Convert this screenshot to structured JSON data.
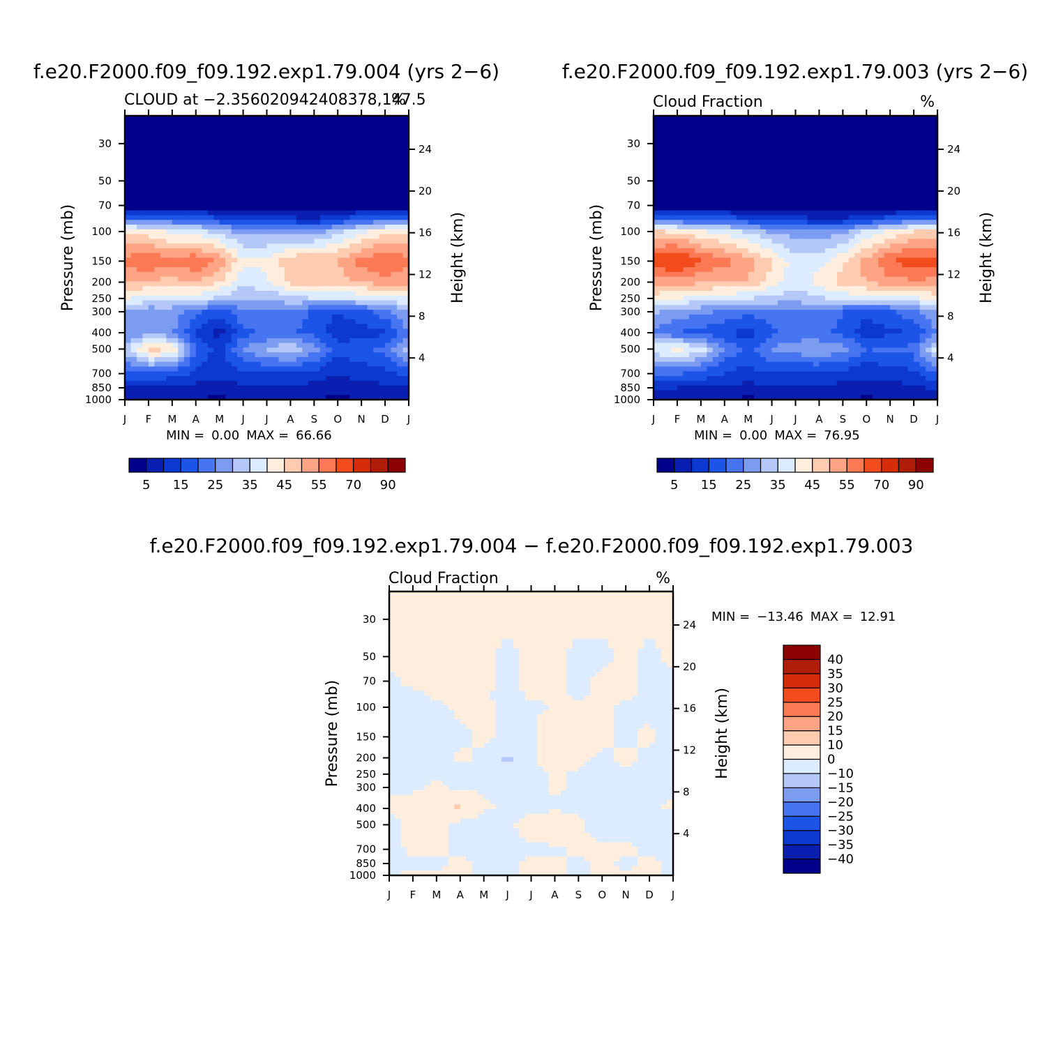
{
  "chart_data": [
    {
      "type": "heatmap",
      "id": "cloud_test",
      "title": "f.e20.F2000.f09_f09.192.exp1.79.004 (yrs 2−6)",
      "subtitle_left": "CLOUD at −2.356020942408378,147.5",
      "units": "%",
      "xlabel": "",
      "ylabel_left": "Pressure (mb)",
      "ylabel_right": "Height (km)",
      "x_ticks": [
        "J",
        "F",
        "M",
        "A",
        "M",
        "J",
        "J",
        "A",
        "S",
        "O",
        "N",
        "D",
        "J"
      ],
      "pressure_ticks": [
        30,
        50,
        70,
        100,
        150,
        200,
        250,
        300,
        400,
        500,
        700,
        850,
        1000
      ],
      "height_ticks": [
        24,
        20,
        16,
        12,
        8,
        4
      ],
      "min_label": "MIN =",
      "min_value": "0.00",
      "max_label": "MAX =",
      "max_value": "66.66",
      "colorbar_labels": [
        "5",
        "15",
        "25",
        "35",
        "45",
        "55",
        "70",
        "90"
      ],
      "colors": [
        "#00008b",
        "#0a1fb0",
        "#0c39d0",
        "#1d54e8",
        "#4774f0",
        "#7c9cf2",
        "#b3c8f7",
        "#dcebfd",
        "#ffeedd",
        "#fdcbb0",
        "#fda485",
        "#fb7a55",
        "#f24b1c",
        "#d52d0a",
        "#b01e0a",
        "#8b0000"
      ],
      "levels": [
        0,
        5,
        10,
        15,
        20,
        25,
        30,
        35,
        40,
        45,
        50,
        55,
        60,
        70,
        80,
        90
      ],
      "months": [
        0,
        1,
        2,
        3,
        4,
        5,
        6,
        7,
        8,
        9,
        10,
        11,
        12
      ],
      "z": [
        [
          0,
          0,
          0,
          0,
          0,
          0,
          0,
          0,
          0,
          0,
          0,
          0,
          0
        ],
        [
          0,
          0,
          0,
          0,
          0,
          0,
          0,
          0,
          0,
          0,
          0,
          0,
          0
        ],
        [
          1,
          1,
          1,
          1,
          1,
          1,
          1,
          1,
          1,
          1,
          1,
          1,
          1
        ],
        [
          23,
          21,
          21,
          20,
          17,
          12,
          13,
          12,
          10,
          15,
          19,
          22,
          23
        ],
        [
          44,
          42,
          39,
          37,
          33,
          28,
          29,
          27,
          27,
          34,
          39,
          43,
          44
        ],
        [
          57,
          60,
          56,
          60,
          54,
          41,
          41,
          49,
          50,
          50,
          57,
          61,
          57
        ],
        [
          51,
          49,
          48,
          50,
          45,
          36,
          39,
          46,
          49,
          48,
          50,
          53,
          51
        ],
        [
          40,
          38,
          37,
          36,
          34,
          30,
          31,
          33,
          35,
          35,
          36,
          37,
          40
        ],
        [
          30,
          26,
          27,
          22,
          17,
          24,
          25,
          24,
          19,
          15,
          18,
          23,
          30
        ],
        [
          25,
          28,
          26,
          14,
          8,
          18,
          21,
          20,
          18,
          12,
          13,
          14,
          25
        ],
        [
          32,
          48,
          44,
          20,
          13,
          26,
          30,
          35,
          27,
          17,
          19,
          22,
          32
        ],
        [
          18,
          20,
          17,
          14,
          12,
          14,
          15,
          14,
          13,
          10,
          12,
          13,
          18
        ],
        [
          10,
          10,
          9,
          8,
          7,
          9,
          10,
          9,
          8,
          7,
          8,
          9,
          10
        ],
        [
          6,
          5,
          6,
          5,
          4,
          5,
          6,
          5,
          5,
          4,
          5,
          5,
          6
        ]
      ],
      "z_pressure": [
        30,
        50,
        70,
        85,
        100,
        150,
        200,
        250,
        300,
        400,
        500,
        700,
        850,
        1000
      ]
    },
    {
      "type": "heatmap",
      "id": "cloud_control",
      "title": "f.e20.F2000.f09_f09.192.exp1.79.003 (yrs 2−6)",
      "subtitle_left": "Cloud Fraction",
      "units": "%",
      "xlabel": "",
      "ylabel_left": "Pressure (mb)",
      "ylabel_right": "Height (km)",
      "x_ticks": [
        "J",
        "F",
        "M",
        "A",
        "M",
        "J",
        "J",
        "A",
        "S",
        "O",
        "N",
        "D",
        "J"
      ],
      "pressure_ticks": [
        30,
        50,
        70,
        100,
        150,
        200,
        250,
        300,
        400,
        500,
        700,
        850,
        1000
      ],
      "height_ticks": [
        24,
        20,
        16,
        12,
        8,
        4
      ],
      "min_label": "MIN =",
      "min_value": "0.00",
      "max_label": "MAX =",
      "max_value": "76.95",
      "colorbar_labels": [
        "5",
        "15",
        "25",
        "35",
        "45",
        "55",
        "70",
        "90"
      ],
      "colors": [
        "#00008b",
        "#0a1fb0",
        "#0c39d0",
        "#1d54e8",
        "#4774f0",
        "#7c9cf2",
        "#b3c8f7",
        "#dcebfd",
        "#ffeedd",
        "#fdcbb0",
        "#fda485",
        "#fb7a55",
        "#f24b1c",
        "#d52d0a",
        "#b01e0a",
        "#8b0000"
      ],
      "levels": [
        0,
        5,
        10,
        15,
        20,
        25,
        30,
        35,
        40,
        45,
        50,
        55,
        60,
        70,
        80,
        90
      ],
      "months": [
        0,
        1,
        2,
        3,
        4,
        5,
        6,
        7,
        8,
        9,
        10,
        11,
        12
      ],
      "z": [
        [
          0,
          0,
          0,
          0,
          0,
          0,
          0,
          0,
          0,
          0,
          0,
          0,
          0
        ],
        [
          0,
          0,
          0,
          0,
          0,
          0,
          0,
          0,
          0,
          0,
          0,
          0,
          0
        ],
        [
          1,
          1,
          1,
          1,
          1,
          1,
          1,
          1,
          1,
          1,
          1,
          1,
          1
        ],
        [
          22,
          20,
          20,
          19,
          16,
          13,
          12,
          11,
          11,
          14,
          18,
          21,
          22
        ],
        [
          46,
          44,
          41,
          38,
          34,
          29,
          28,
          27,
          29,
          36,
          41,
          45,
          46
        ],
        [
          63,
          68,
          60,
          57,
          52,
          46,
          37,
          38,
          44,
          52,
          60,
          63,
          63
        ],
        [
          53,
          52,
          51,
          49,
          50,
          42,
          37,
          42,
          47,
          50,
          53,
          54,
          53
        ],
        [
          42,
          40,
          38,
          36,
          35,
          33,
          32,
          34,
          36,
          37,
          38,
          39,
          42
        ],
        [
          31,
          28,
          26,
          24,
          21,
          24,
          25,
          23,
          20,
          16,
          19,
          24,
          31
        ],
        [
          24,
          20,
          18,
          16,
          12,
          19,
          22,
          21,
          19,
          12,
          14,
          15,
          24
        ],
        [
          38,
          42,
          38,
          24,
          18,
          26,
          28,
          30,
          27,
          20,
          21,
          22,
          38
        ],
        [
          20,
          21,
          18,
          15,
          13,
          15,
          14,
          14,
          13,
          11,
          12,
          14,
          20
        ],
        [
          11,
          10,
          10,
          9,
          8,
          9,
          10,
          9,
          8,
          8,
          8,
          9,
          11
        ],
        [
          6,
          5,
          6,
          5,
          4,
          5,
          6,
          5,
          5,
          4,
          5,
          5,
          6
        ]
      ],
      "z_pressure": [
        30,
        50,
        70,
        85,
        100,
        150,
        200,
        250,
        300,
        400,
        500,
        700,
        850,
        1000
      ]
    },
    {
      "type": "heatmap",
      "id": "cloud_difference",
      "title": "f.e20.F2000.f09_f09.192.exp1.79.004 − f.e20.F2000.f09_f09.192.exp1.79.003",
      "subtitle_left": "Cloud Fraction",
      "units": "%",
      "xlabel": "",
      "ylabel_left": "Pressure (mb)",
      "ylabel_right": "Height (km)",
      "x_ticks": [
        "J",
        "F",
        "M",
        "A",
        "M",
        "J",
        "J",
        "A",
        "S",
        "O",
        "N",
        "D",
        "J"
      ],
      "pressure_ticks": [
        30,
        50,
        70,
        100,
        150,
        200,
        250,
        300,
        400,
        500,
        700,
        850,
        1000
      ],
      "height_ticks": [
        24,
        20,
        16,
        12,
        8,
        4
      ],
      "min_label": "MIN =",
      "min_value": "−13.46",
      "max_label": "MAX =",
      "max_value": "12.91",
      "colorbar_labels": [
        "40",
        "35",
        "30",
        "25",
        "20",
        "15",
        "10",
        "0",
        "−10",
        "−15",
        "−20",
        "−25",
        "−30",
        "−35",
        "−40"
      ],
      "colors": [
        "#00008b",
        "#0a1fb0",
        "#0c39d0",
        "#1d54e8",
        "#4774f0",
        "#7c9cf2",
        "#b3c8f7",
        "#dcebfd",
        "#ffeedd",
        "#fdcbb0",
        "#fda485",
        "#fb7a55",
        "#f24b1c",
        "#d52d0a",
        "#b01e0a",
        "#8b0000"
      ],
      "levels": [
        -1000,
        -40,
        -35,
        -30,
        -25,
        -20,
        -15,
        -10,
        0,
        10,
        15,
        20,
        25,
        30,
        35,
        40
      ],
      "months": [
        0,
        1,
        2,
        3,
        4,
        5,
        6,
        7,
        8,
        9,
        10,
        11,
        12
      ],
      "z": [
        [
          1,
          1,
          1,
          1,
          1,
          1,
          1,
          1,
          1,
          1,
          1,
          1,
          1
        ],
        [
          1,
          1,
          1,
          1,
          1,
          -1,
          1,
          1,
          -1,
          -1,
          1,
          -1,
          1
        ],
        [
          -1,
          1,
          1,
          1,
          1,
          -1,
          1,
          1,
          -1,
          1,
          1,
          -1,
          -1
        ],
        [
          -1,
          -1,
          1,
          1,
          1,
          -2,
          1,
          1,
          -1,
          1,
          1,
          -1,
          -1
        ],
        [
          -2,
          -2,
          -1,
          1,
          1,
          -1,
          -2,
          1,
          1,
          1,
          -1,
          -1,
          -2
        ],
        [
          -3,
          -8,
          -4,
          -1,
          1,
          -1,
          -2,
          11,
          3,
          1,
          -1,
          1,
          -3
        ],
        [
          -2,
          -2,
          -2,
          1,
          -1,
          -12,
          -1,
          4,
          2,
          -1,
          1,
          -1,
          -2
        ],
        [
          -2,
          -2,
          -1,
          -1,
          -3,
          -9,
          -2,
          1,
          -1,
          -2,
          -1,
          -1,
          -2
        ],
        [
          -1,
          -2,
          1,
          -2,
          -1,
          -3,
          -2,
          1,
          -1,
          -1,
          -1,
          -1,
          -1
        ],
        [
          1,
          6,
          8,
          12,
          1,
          -1,
          -1,
          -1,
          -1,
          -1,
          -1,
          -1,
          1
        ],
        [
          -6,
          6,
          6,
          -4,
          -5,
          -1,
          2,
          5,
          1,
          -3,
          -2,
          -1,
          -6
        ],
        [
          -2,
          1,
          1,
          -1,
          -2,
          -1,
          -1,
          -1,
          1,
          1,
          1,
          -1,
          -2
        ],
        [
          -1,
          -1,
          -1,
          1,
          -1,
          -1,
          1,
          1,
          -1,
          1,
          -1,
          1,
          -1
        ],
        [
          -1,
          1,
          1,
          1,
          -1,
          -1,
          1,
          1,
          -1,
          1,
          1,
          1,
          -1
        ]
      ],
      "z_pressure": [
        30,
        50,
        70,
        85,
        100,
        150,
        200,
        250,
        300,
        400,
        500,
        700,
        850,
        1000
      ]
    }
  ]
}
